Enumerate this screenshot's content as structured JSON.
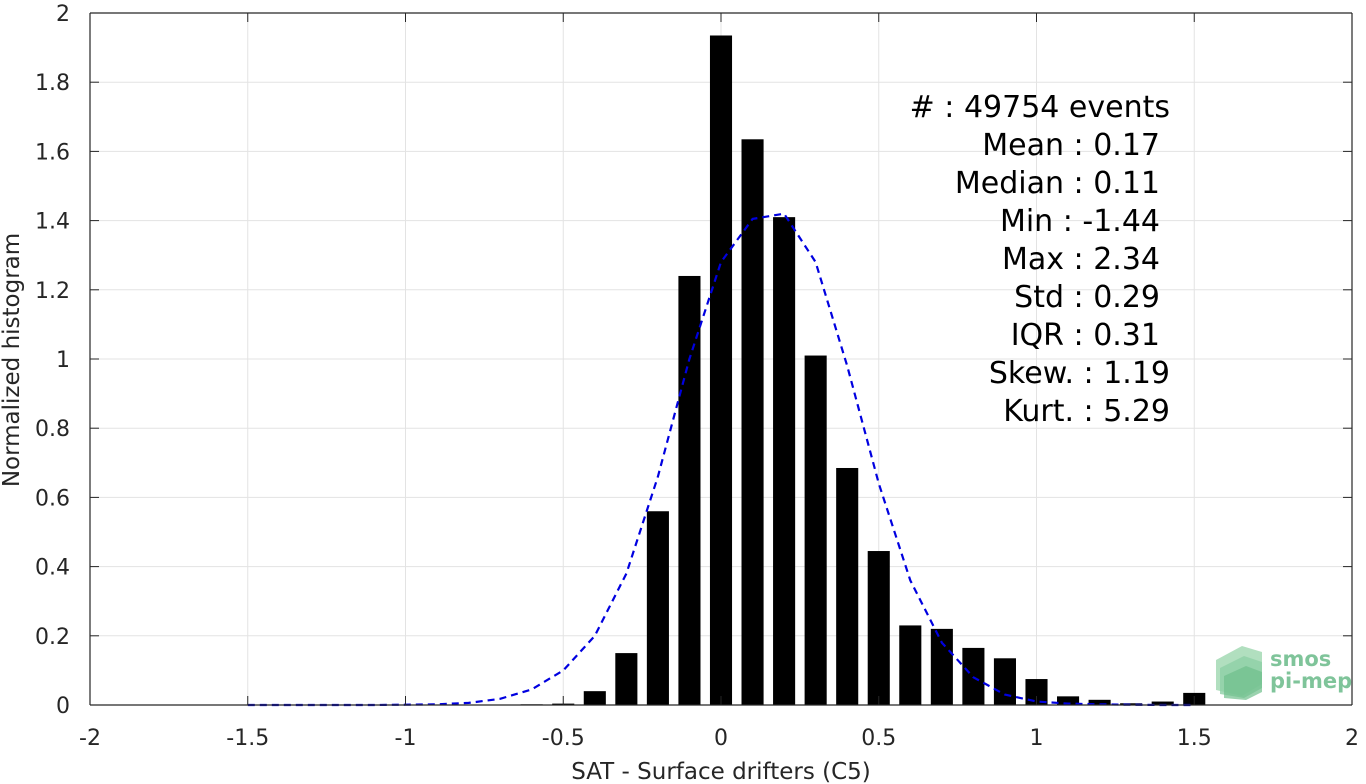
{
  "chart_data": {
    "type": "bar",
    "title": "",
    "xlabel": "SAT - Surface drifters (C5)",
    "ylabel": "Normalized histogram",
    "xlim": [
      -2,
      2
    ],
    "ylim": [
      0,
      2
    ],
    "grid": true,
    "x_ticks": [
      -2,
      -1.5,
      -1,
      -0.5,
      0,
      0.5,
      1,
      1.5,
      2
    ],
    "x_tick_labels": [
      "-2",
      "-1.5",
      "-1",
      "-0.5",
      "0",
      "0.5",
      "1",
      "1.5",
      "2"
    ],
    "y_ticks": [
      0,
      0.2,
      0.4,
      0.6,
      0.8,
      1,
      1.2,
      1.4,
      1.6,
      1.8,
      2
    ],
    "y_tick_labels": [
      "0",
      "0.2",
      "0.4",
      "0.6",
      "0.8",
      "1",
      "1.2",
      "1.4",
      "1.6",
      "1.8",
      "2"
    ],
    "bar_width": 0.07,
    "bar_color": "#000000",
    "histogram": {
      "x": [
        -0.6,
        -0.5,
        -0.4,
        -0.3,
        -0.2,
        -0.1,
        0,
        0.1,
        0.2,
        0.3,
        0.4,
        0.5,
        0.6,
        0.7,
        0.8,
        0.9,
        1.0,
        1.1,
        1.2,
        1.3,
        1.4,
        1.5
      ],
      "values": [
        0.002,
        0.004,
        0.04,
        0.15,
        0.56,
        1.24,
        1.935,
        1.635,
        1.41,
        1.01,
        0.685,
        0.445,
        0.23,
        0.22,
        0.165,
        0.135,
        0.075,
        0.025,
        0.015,
        0.005,
        0.01,
        0.035
      ]
    },
    "fit_curve": {
      "style": "dashed",
      "color": "#0000e0",
      "x": [
        -1.5,
        -1.4,
        -1.3,
        -1.2,
        -1.1,
        -1.0,
        -0.9,
        -0.8,
        -0.7,
        -0.6,
        -0.5,
        -0.4,
        -0.3,
        -0.2,
        -0.1,
        0,
        0.1,
        0.2,
        0.3,
        0.4,
        0.5,
        0.6,
        0.7,
        0.8,
        0.9,
        1.0,
        1.1,
        1.2,
        1.3,
        1.4,
        1.5
      ],
      "y": [
        0,
        0,
        0,
        0,
        0,
        0.001,
        0.002,
        0.006,
        0.018,
        0.045,
        0.1,
        0.2,
        0.38,
        0.66,
        1.0,
        1.28,
        1.405,
        1.42,
        1.28,
        0.98,
        0.64,
        0.36,
        0.18,
        0.08,
        0.03,
        0.01,
        0.004,
        0.002,
        0.001,
        0,
        0
      ]
    },
    "annotations": [
      "#  : 49754 events",
      "Mean : 0.17",
      "Median : 0.11",
      "Min : -1.44",
      "Max : 2.34",
      "Std : 0.29",
      "IQR : 0.31",
      "Skew. : 1.19",
      "Kurt. : 5.29"
    ]
  },
  "logo": {
    "line1": "smos",
    "line2": "pi-mep"
  }
}
